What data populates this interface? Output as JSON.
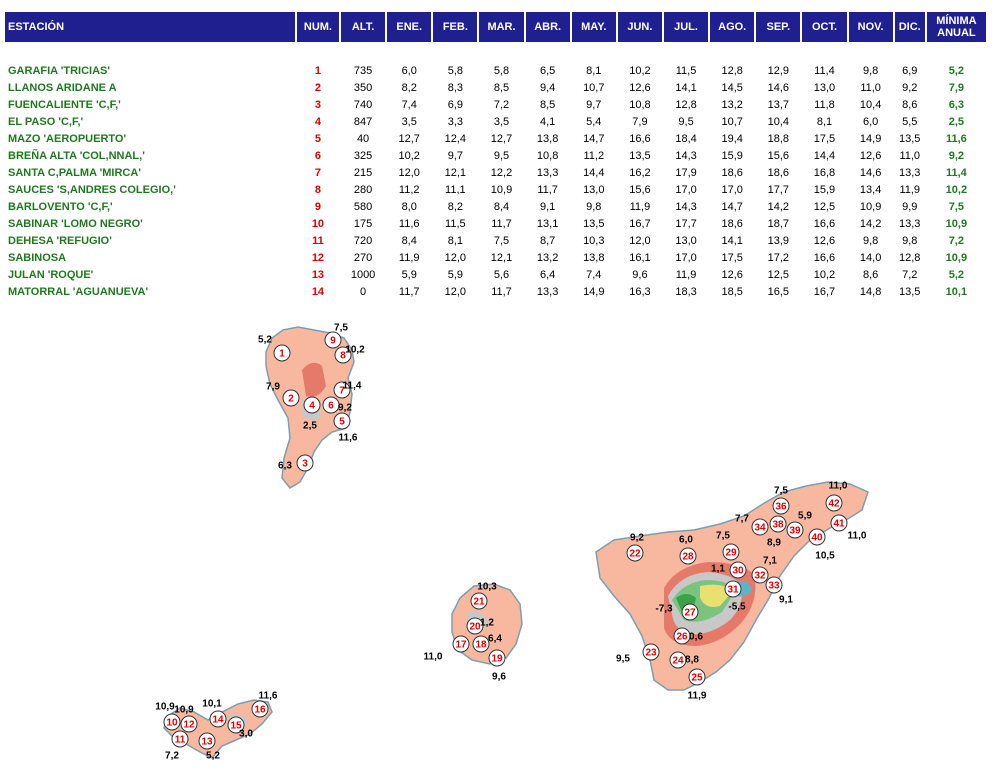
{
  "header": {
    "station": "ESTACIÓN",
    "num": "NUM.",
    "alt": "ALT.",
    "months": [
      "ENE.",
      "FEB.",
      "MAR.",
      "ABR.",
      "MAY.",
      "JUN.",
      "JUL.",
      "AGO.",
      "SEP.",
      "OCT.",
      "NOV.",
      "DIC."
    ],
    "min_line1": "MÍNIMA",
    "min_line2": "ANUAL"
  },
  "stations": [
    {
      "name": "GARAFIA 'TRICIAS'",
      "num": "1",
      "alt": "735",
      "months": [
        "6,0",
        "5,8",
        "5,8",
        "6,5",
        "8,1",
        "10,2",
        "11,5",
        "12,8",
        "12,9",
        "11,4",
        "9,8",
        "6,9"
      ],
      "min": "5,2"
    },
    {
      "name": "LLANOS ARIDANE A",
      "num": "2",
      "alt": "350",
      "months": [
        "8,2",
        "8,3",
        "8,5",
        "9,4",
        "10,7",
        "12,6",
        "14,1",
        "14,5",
        "14,6",
        "13,0",
        "11,0",
        "9,2"
      ],
      "min": "7,9"
    },
    {
      "name": "FUENCALIENTE 'C,F,'",
      "num": "3",
      "alt": "740",
      "months": [
        "7,4",
        "6,9",
        "7,2",
        "8,5",
        "9,7",
        "10,8",
        "12,8",
        "13,2",
        "13,7",
        "11,8",
        "10,4",
        "8,6"
      ],
      "min": "6,3"
    },
    {
      "name": "EL PASO 'C,F,'",
      "num": "4",
      "alt": "847",
      "months": [
        "3,5",
        "3,3",
        "3,5",
        "4,1",
        "5,4",
        "7,9",
        "9,5",
        "10,7",
        "10,4",
        "8,1",
        "6,0",
        "5,5"
      ],
      "min": "2,5"
    },
    {
      "name": "MAZO 'AEROPUERTO'",
      "num": "5",
      "alt": "40",
      "months": [
        "12,7",
        "12,4",
        "12,7",
        "13,8",
        "14,7",
        "16,6",
        "18,4",
        "19,4",
        "18,8",
        "17,5",
        "14,9",
        "13,5"
      ],
      "min": "11,6"
    },
    {
      "name": "BREÑA ALTA 'COL,NNAL,'",
      "num": "6",
      "alt": "325",
      "months": [
        "10,2",
        "9,7",
        "9,5",
        "10,8",
        "11,2",
        "13,5",
        "14,3",
        "15,9",
        "15,6",
        "14,4",
        "12,6",
        "11,0"
      ],
      "min": "9,2"
    },
    {
      "name": "SANTA C,PALMA 'MIRCA'",
      "num": "7",
      "alt": "215",
      "months": [
        "12,0",
        "12,1",
        "12,2",
        "13,3",
        "14,4",
        "16,2",
        "17,9",
        "18,6",
        "18,6",
        "16,8",
        "14,6",
        "13,3"
      ],
      "min": "11,4"
    },
    {
      "name": "SAUCES 'S,ANDRES COLEGIO,'",
      "num": "8",
      "alt": "280",
      "months": [
        "11,2",
        "11,1",
        "10,9",
        "11,7",
        "13,0",
        "15,6",
        "17,0",
        "17,0",
        "17,7",
        "15,9",
        "13,4",
        "11,9"
      ],
      "min": "10,2"
    },
    {
      "name": "BARLOVENTO 'C,F,'",
      "num": "9",
      "alt": "580",
      "months": [
        "8,0",
        "8,2",
        "8,4",
        "9,1",
        "9,8",
        "11,9",
        "14,3",
        "14,7",
        "14,2",
        "12,5",
        "10,9",
        "9,9"
      ],
      "min": "7,5"
    },
    {
      "name": "SABINAR 'LOMO NEGRO'",
      "num": "10",
      "alt": "175",
      "months": [
        "11,6",
        "11,5",
        "11,7",
        "13,1",
        "13,5",
        "16,7",
        "17,7",
        "18,6",
        "18,7",
        "16,6",
        "14,2",
        "13,3"
      ],
      "min": "10,9"
    },
    {
      "name": "DEHESA 'REFUGIO'",
      "num": "11",
      "alt": "720",
      "months": [
        "8,4",
        "8,1",
        "7,5",
        "8,7",
        "10,3",
        "12,0",
        "13,0",
        "14,1",
        "13,9",
        "12,6",
        "9,8",
        "9,8"
      ],
      "min": "7,2"
    },
    {
      "name": "SABINOSA",
      "num": "12",
      "alt": "270",
      "months": [
        "11,9",
        "12,0",
        "12,1",
        "13,2",
        "13,8",
        "16,1",
        "17,0",
        "17,5",
        "17,2",
        "16,6",
        "14,0",
        "12,8"
      ],
      "min": "10,9"
    },
    {
      "name": "JULAN 'ROQUE'",
      "num": "13",
      "alt": "1000",
      "months": [
        "5,9",
        "5,9",
        "5,6",
        "6,4",
        "7,4",
        "9,6",
        "11,9",
        "12,6",
        "12,5",
        "10,2",
        "8,6",
        "7,2"
      ],
      "min": "5,2"
    },
    {
      "name": "MATORRAL 'AGUANUEVA'",
      "num": "14",
      "alt": "0",
      "months": [
        "11,7",
        "12,0",
        "11,7",
        "13,3",
        "14,9",
        "16,3",
        "18,3",
        "18,5",
        "16,5",
        "16,7",
        "14,8",
        "13,5"
      ],
      "min": "10,1"
    }
  ],
  "colors": {
    "header_bg": "#1f1f8f",
    "station_text": "#1f7a1f",
    "num_text": "#e00000",
    "island_fill": "#f8b8a0",
    "zone_mid": "#e67a6a",
    "zone_cool": "#c8c8c8",
    "zone_cold_green": "#7bc47f",
    "zone_cold_yellow": "#e8e070",
    "zone_coldest": "#3aa34a",
    "zone_teal": "#5bb5c8"
  },
  "map": {
    "stations": [
      {
        "num": "1",
        "label": "5,2"
      },
      {
        "num": "2",
        "label": "7,9"
      },
      {
        "num": "3",
        "label": "6,3"
      },
      {
        "num": "4",
        "label": "2,5"
      },
      {
        "num": "5",
        "label": "11,6"
      },
      {
        "num": "6",
        "label": "9,2"
      },
      {
        "num": "7",
        "label": "11,4"
      },
      {
        "num": "8",
        "label": "10,2"
      },
      {
        "num": "9",
        "label": "7,5"
      },
      {
        "num": "10",
        "label": "10,9"
      },
      {
        "num": "11",
        "label": "7,2"
      },
      {
        "num": "12",
        "label": "10,9"
      },
      {
        "num": "13",
        "label": "5,2"
      },
      {
        "num": "14",
        "label": "10,1"
      },
      {
        "num": "15",
        "label": "3,0"
      },
      {
        "num": "16",
        "label": "11,6"
      },
      {
        "num": "17",
        "label": "11,0"
      },
      {
        "num": "18",
        "label": "6,4"
      },
      {
        "num": "19",
        "label": "9,6"
      },
      {
        "num": "20",
        "label": "1,2"
      },
      {
        "num": "21",
        "label": "10,3"
      },
      {
        "num": "22",
        "label": "9,2"
      },
      {
        "num": "23",
        "label": "9,5"
      },
      {
        "num": "24",
        "label": "8,8"
      },
      {
        "num": "25",
        "label": "11,9"
      },
      {
        "num": "26",
        "label": "0,6"
      },
      {
        "num": "27",
        "label": "-7,3"
      },
      {
        "num": "28",
        "label": "6,0"
      },
      {
        "num": "29",
        "label": "7,5"
      },
      {
        "num": "30",
        "label": "1,1"
      },
      {
        "num": "31",
        "label": "-5,5"
      },
      {
        "num": "32",
        "label": "7,1"
      },
      {
        "num": "33",
        "label": "9,1"
      },
      {
        "num": "34",
        "label": "7,7"
      },
      {
        "num": "36",
        "label": "7,5"
      },
      {
        "num": "38",
        "label": "8,9"
      },
      {
        "num": "39",
        "label": "5,9"
      },
      {
        "num": "40",
        "label": "10,5"
      },
      {
        "num": "41",
        "label": "11,0"
      },
      {
        "num": "42",
        "label": "11,0"
      }
    ]
  }
}
